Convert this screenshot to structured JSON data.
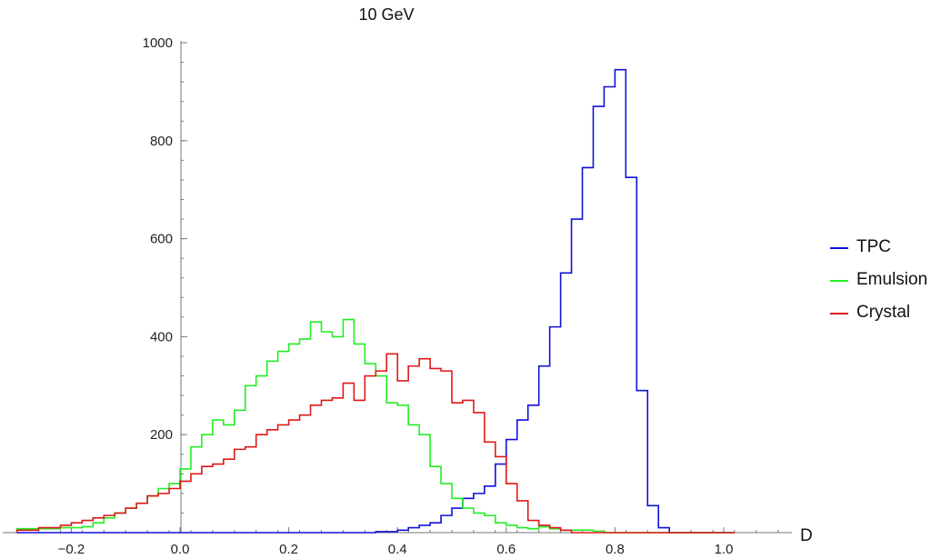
{
  "chart_data": {
    "type": "line",
    "title": "10 GeV",
    "xlabel": "D",
    "ylabel": "",
    "xlim": [
      -0.3,
      1.12
    ],
    "ylim": [
      0,
      1000
    ],
    "xticks": [
      -0.2,
      0.0,
      0.2,
      0.4,
      0.6,
      0.8,
      1.0
    ],
    "xtick_labels": [
      "−0.2",
      "0.0",
      "0.2",
      "0.4",
      "0.6",
      "0.8",
      "1.0"
    ],
    "yticks": [
      200,
      400,
      600,
      800,
      1000
    ],
    "ytick_labels": [
      "200",
      "400",
      "600",
      "800",
      "1000"
    ],
    "bin_edges": [
      -0.3,
      -0.28,
      -0.26,
      -0.24,
      -0.22,
      -0.2,
      -0.18,
      -0.16,
      -0.14,
      -0.12,
      -0.1,
      -0.08,
      -0.06,
      -0.04,
      -0.02,
      0.0,
      0.02,
      0.04,
      0.06,
      0.08,
      0.1,
      0.12,
      0.14,
      0.16,
      0.18,
      0.2,
      0.22,
      0.24,
      0.26,
      0.28,
      0.3,
      0.32,
      0.34,
      0.36,
      0.38,
      0.4,
      0.42,
      0.44,
      0.46,
      0.48,
      0.5,
      0.52,
      0.54,
      0.56,
      0.58,
      0.6,
      0.62,
      0.64,
      0.66,
      0.68,
      0.7,
      0.72,
      0.74,
      0.76,
      0.78,
      0.8,
      0.82,
      0.84,
      0.86,
      0.88,
      0.9,
      0.92,
      0.94,
      0.96,
      0.98,
      1.0,
      1.02
    ],
    "grid": false,
    "legend_position": "right",
    "series": [
      {
        "name": "TPC",
        "color": "#1010d8",
        "values": [
          0,
          0,
          0,
          0,
          0,
          0,
          0,
          0,
          0,
          0,
          0,
          0,
          0,
          0,
          0,
          0,
          0,
          0,
          0,
          0,
          0,
          0,
          0,
          0,
          0,
          0,
          0,
          0,
          0,
          0,
          0,
          0,
          0,
          2,
          2,
          5,
          10,
          15,
          20,
          35,
          50,
          70,
          80,
          95,
          140,
          190,
          230,
          260,
          340,
          420,
          530,
          640,
          745,
          870,
          910,
          945,
          725,
          290,
          55,
          10,
          0,
          0,
          0,
          0,
          0,
          0
        ]
      },
      {
        "name": "Emulsion",
        "color": "#22ee22",
        "values": [
          8,
          8,
          8,
          8,
          10,
          10,
          12,
          20,
          30,
          40,
          50,
          60,
          75,
          90,
          100,
          130,
          175,
          200,
          230,
          220,
          250,
          300,
          320,
          350,
          370,
          385,
          395,
          430,
          410,
          400,
          435,
          385,
          345,
          320,
          265,
          260,
          220,
          200,
          135,
          100,
          70,
          50,
          40,
          35,
          20,
          15,
          10,
          8,
          12,
          8,
          5,
          5,
          5,
          3,
          0,
          0,
          0,
          0,
          0,
          0,
          0,
          0,
          0,
          0,
          0,
          0
        ]
      },
      {
        "name": "Crystal",
        "color": "#e01818",
        "values": [
          5,
          5,
          10,
          10,
          15,
          20,
          25,
          30,
          35,
          40,
          50,
          60,
          75,
          80,
          90,
          105,
          120,
          135,
          140,
          150,
          170,
          175,
          200,
          210,
          220,
          230,
          240,
          260,
          270,
          275,
          305,
          270,
          320,
          330,
          365,
          310,
          340,
          355,
          335,
          330,
          265,
          270,
          245,
          185,
          155,
          100,
          65,
          25,
          15,
          10,
          5,
          0,
          0,
          0,
          0,
          0,
          0,
          0,
          0,
          0,
          0,
          0,
          0,
          0,
          0,
          0
        ]
      }
    ]
  }
}
